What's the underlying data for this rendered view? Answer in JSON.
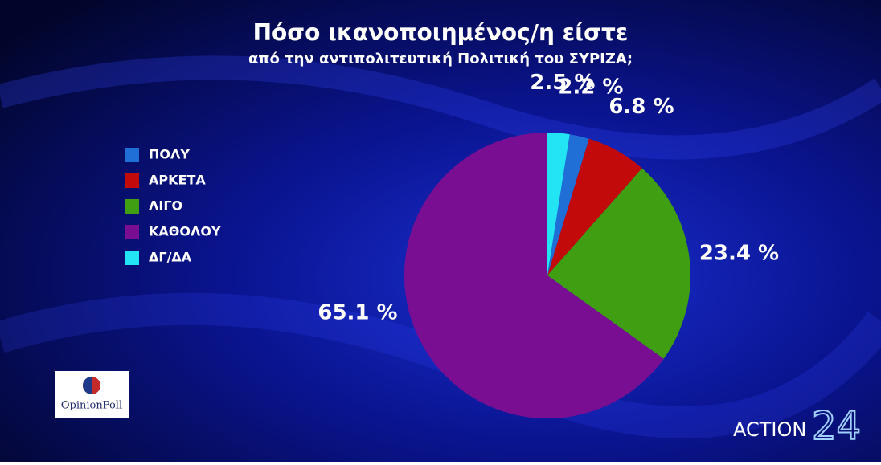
{
  "chart_data": {
    "type": "pie",
    "title": "Πόσο ικανοποιημένος/η είστε",
    "subtitle": "από την αντιπολιτευτική Πολιτική του ΣΥΡΙΖΑ;",
    "categories": [
      "ΠΟΛΥ",
      "ΑΡΚΕΤΑ",
      "ΛΙΓΟ",
      "ΚΑΘΟΛΟΥ",
      "ΔΓ/ΔΑ"
    ],
    "values": [
      2.2,
      6.8,
      23.4,
      65.1,
      2.5
    ],
    "value_labels": [
      "2.2 %",
      "6.8 %",
      "23.4 %",
      "65.1 %",
      "2.5 %"
    ],
    "colors": [
      "#1f6fd6",
      "#c20a0a",
      "#3f9e12",
      "#7a0e92",
      "#22e4f2"
    ],
    "legend": "left"
  },
  "logos": {
    "poll": "OpinionPoll",
    "channel": "ACTION",
    "channel_number": "24"
  }
}
